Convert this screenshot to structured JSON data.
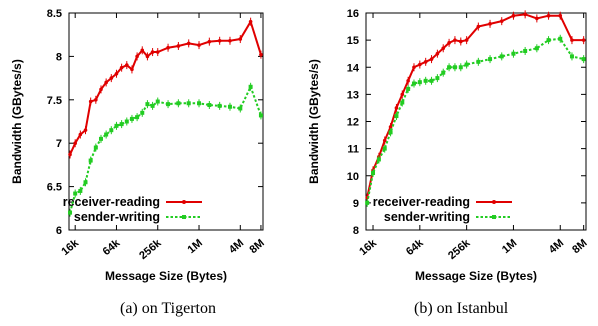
{
  "chart_data": [
    {
      "type": "line",
      "caption": "(a) on Tigerton",
      "xlabel": "Message Size (Bytes)",
      "ylabel": "Bandwidth (GBytes/s)",
      "ylim": [
        6,
        8.5
      ],
      "yticks": [
        "6",
        "6.5",
        "7",
        "7.5",
        "8",
        "8.5"
      ],
      "xticks": [
        "16k",
        "64k",
        "256k",
        "1M",
        "4M",
        "8M"
      ],
      "x_scale": "log2",
      "xlim_log2": [
        13.7,
        23.1
      ],
      "legend_position": "bottom-right",
      "series": [
        {
          "name": "receiver-reading",
          "color": "#e00000",
          "style": "solid",
          "x_log2": [
            13.75,
            14.0,
            14.25,
            14.5,
            14.75,
            15.0,
            15.25,
            15.5,
            15.75,
            16.0,
            16.25,
            16.5,
            16.75,
            17.0,
            17.25,
            17.5,
            17.75,
            18.0,
            18.5,
            19.0,
            19.5,
            20.0,
            20.5,
            21.0,
            21.5,
            22.0,
            22.5,
            23.0
          ],
          "values": [
            6.87,
            7.0,
            7.1,
            7.15,
            7.48,
            7.5,
            7.62,
            7.7,
            7.75,
            7.8,
            7.87,
            7.9,
            7.85,
            8.0,
            8.07,
            8.0,
            8.05,
            8.05,
            8.1,
            8.12,
            8.15,
            8.13,
            8.17,
            8.18,
            8.18,
            8.2,
            8.4,
            8.02
          ]
        },
        {
          "name": "sender-writing",
          "color": "#22cc22",
          "style": "dotted",
          "x_log2": [
            13.75,
            14.0,
            14.25,
            14.5,
            14.75,
            15.0,
            15.25,
            15.5,
            15.75,
            16.0,
            16.25,
            16.5,
            16.75,
            17.0,
            17.25,
            17.5,
            17.75,
            18.0,
            18.5,
            19.0,
            19.5,
            20.0,
            20.5,
            21.0,
            21.5,
            22.0,
            22.5,
            23.0
          ],
          "values": [
            6.2,
            6.42,
            6.45,
            6.55,
            6.8,
            6.95,
            7.05,
            7.1,
            7.15,
            7.2,
            7.22,
            7.25,
            7.28,
            7.3,
            7.35,
            7.45,
            7.43,
            7.48,
            7.45,
            7.46,
            7.46,
            7.46,
            7.44,
            7.43,
            7.42,
            7.4,
            7.65,
            7.32
          ]
        }
      ]
    },
    {
      "type": "line",
      "caption": "(b) on Istanbul",
      "xlabel": "Message Size (Bytes)",
      "ylabel": "Bandwidth (GBytes/s)",
      "ylim": [
        8,
        16
      ],
      "yticks": [
        "8",
        "9",
        "10",
        "11",
        "12",
        "13",
        "14",
        "15",
        "16"
      ],
      "xticks": [
        "16k",
        "64k",
        "256k",
        "1M",
        "4M",
        "8M"
      ],
      "x_scale": "log2",
      "xlim_log2": [
        13.7,
        23.1
      ],
      "legend_position": "bottom-right",
      "series": [
        {
          "name": "receiver-reading",
          "color": "#e00000",
          "style": "solid",
          "x_log2": [
            13.75,
            14.0,
            14.25,
            14.5,
            14.75,
            15.0,
            15.25,
            15.5,
            15.75,
            16.0,
            16.25,
            16.5,
            16.75,
            17.0,
            17.25,
            17.5,
            17.75,
            18.0,
            18.5,
            19.0,
            19.5,
            20.0,
            20.5,
            21.0,
            21.5,
            22.0,
            22.5,
            23.0
          ],
          "values": [
            9.2,
            10.2,
            10.7,
            11.3,
            11.8,
            12.5,
            13.0,
            13.5,
            14.0,
            14.1,
            14.2,
            14.3,
            14.5,
            14.7,
            14.9,
            15.0,
            14.95,
            15.0,
            15.5,
            15.6,
            15.7,
            15.9,
            15.95,
            15.8,
            15.9,
            15.9,
            15.0,
            15.0
          ]
        },
        {
          "name": "sender-writing",
          "color": "#22cc22",
          "style": "dotted",
          "x_log2": [
            13.75,
            14.0,
            14.25,
            14.5,
            14.75,
            15.0,
            15.25,
            15.5,
            15.75,
            16.0,
            16.25,
            16.5,
            16.75,
            17.0,
            17.25,
            17.5,
            17.75,
            18.0,
            18.5,
            19.0,
            19.5,
            20.0,
            20.5,
            21.0,
            21.5,
            22.0,
            22.5,
            23.0
          ],
          "values": [
            9.0,
            10.1,
            10.6,
            11.0,
            11.6,
            12.2,
            12.7,
            13.2,
            13.4,
            13.45,
            13.5,
            13.5,
            13.6,
            13.8,
            14.0,
            14.0,
            14.0,
            14.1,
            14.2,
            14.3,
            14.4,
            14.5,
            14.6,
            14.7,
            15.0,
            15.05,
            14.4,
            14.3
          ]
        }
      ]
    }
  ]
}
